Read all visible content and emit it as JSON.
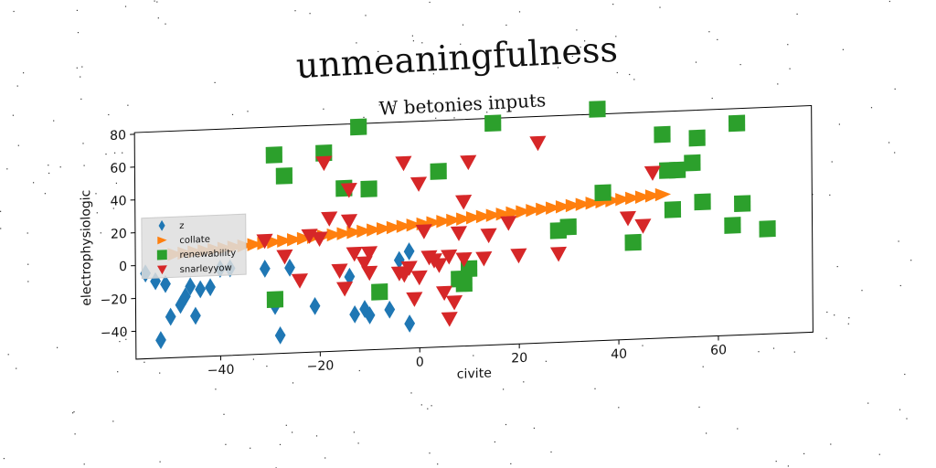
{
  "chart_data": {
    "type": "scatter",
    "suptitle": "unmeaningfulness",
    "title": "W betonies inputs",
    "xlabel": "civite",
    "ylabel": "electrophysiologic",
    "xlim": [
      -57,
      79
    ],
    "ylim": [
      -57,
      81
    ],
    "xticks": [
      -40,
      -20,
      0,
      20,
      40,
      60
    ],
    "xtick_labels": [
      "−40",
      "−20",
      "0",
      "20",
      "40",
      "60"
    ],
    "yticks": [
      -40,
      -20,
      0,
      20,
      40,
      60,
      80
    ],
    "ytick_labels": [
      "−40",
      "−20",
      "0",
      "20",
      "40",
      "60",
      "80"
    ],
    "grid": false,
    "legend_position": "center-left",
    "series": [
      {
        "name": "z",
        "marker": "diamond",
        "color": "#1f77b4",
        "points": [
          [
            -55,
            -5
          ],
          [
            -53,
            -10
          ],
          [
            -52,
            -46
          ],
          [
            -51,
            -12
          ],
          [
            -50,
            -32
          ],
          [
            -48,
            -25
          ],
          [
            -47,
            -20
          ],
          [
            -46,
            -14
          ],
          [
            -45,
            -32
          ],
          [
            -44,
            -16
          ],
          [
            -42,
            -15
          ],
          [
            -40,
            -4
          ],
          [
            -38,
            -4
          ],
          [
            -31,
            -5
          ],
          [
            -29,
            -28
          ],
          [
            -28,
            -46
          ],
          [
            -26,
            -5
          ],
          [
            -21,
            -29
          ],
          [
            -14,
            -12
          ],
          [
            -13,
            -35
          ],
          [
            -11,
            -32
          ],
          [
            -10,
            -36
          ],
          [
            -6,
            -33
          ],
          [
            -4,
            -3
          ],
          [
            -2,
            2
          ],
          [
            -2,
            -42
          ]
        ]
      },
      {
        "name": "collate",
        "marker": "triangle-right",
        "color": "#ff7f0e",
        "points": [
          [
            -49,
            6
          ],
          [
            -47,
            6.5
          ],
          [
            -45,
            7
          ],
          [
            -43,
            7.5
          ],
          [
            -41,
            8
          ],
          [
            -39,
            8.5
          ],
          [
            -37,
            9
          ],
          [
            -35,
            9.5
          ],
          [
            -33,
            10
          ],
          [
            -31,
            10.5
          ],
          [
            -29,
            11
          ],
          [
            -27,
            11.5
          ],
          [
            -25,
            12
          ],
          [
            -23,
            12.5
          ],
          [
            -21,
            13
          ],
          [
            -19,
            13.5
          ],
          [
            -17,
            14
          ],
          [
            -15,
            14.5
          ],
          [
            -13,
            15
          ],
          [
            -11,
            15.5
          ],
          [
            -9,
            16
          ],
          [
            -7,
            16.5
          ],
          [
            -5,
            17
          ],
          [
            -3,
            17.5
          ],
          [
            -1,
            18
          ],
          [
            1,
            18.5
          ],
          [
            3,
            19
          ],
          [
            5,
            19.5
          ],
          [
            7,
            20
          ],
          [
            9,
            20.5
          ],
          [
            11,
            21
          ],
          [
            13,
            21.5
          ],
          [
            15,
            22
          ],
          [
            17,
            22.5
          ],
          [
            19,
            23
          ],
          [
            21,
            23.5
          ],
          [
            23,
            24
          ],
          [
            25,
            24.5
          ],
          [
            27,
            25
          ],
          [
            29,
            25.5
          ],
          [
            31,
            26
          ],
          [
            33,
            26.5
          ],
          [
            35,
            27
          ],
          [
            37,
            27.5
          ],
          [
            39,
            28
          ],
          [
            41,
            28.5
          ],
          [
            43,
            29
          ],
          [
            45,
            29.5
          ],
          [
            47,
            30
          ],
          [
            49,
            30.5
          ]
        ]
      },
      {
        "name": "renewability",
        "marker": "square",
        "color": "#2ca02c",
        "points": [
          [
            -29,
            64
          ],
          [
            -27,
            51
          ],
          [
            -29,
            -24
          ],
          [
            -19,
            64
          ],
          [
            -15,
            42
          ],
          [
            -12,
            79
          ],
          [
            -10,
            41
          ],
          [
            -8,
            -22
          ],
          [
            4,
            50
          ],
          [
            8,
            -16
          ],
          [
            9,
            -19
          ],
          [
            10,
            -10
          ],
          [
            15,
            78
          ],
          [
            28,
            11
          ],
          [
            30,
            13
          ],
          [
            36,
            84
          ],
          [
            37,
            33
          ],
          [
            43,
            2
          ],
          [
            49,
            67
          ],
          [
            50,
            45
          ],
          [
            51,
            21
          ],
          [
            52,
            45
          ],
          [
            55,
            49
          ],
          [
            56,
            64
          ],
          [
            57,
            25
          ],
          [
            63,
            10
          ],
          [
            64,
            72
          ],
          [
            65,
            23
          ],
          [
            70,
            7
          ]
        ]
      },
      {
        "name": "snarleyyow",
        "marker": "triangle-down",
        "color": "#d62728",
        "points": [
          [
            -31,
            12
          ],
          [
            -27,
            2
          ],
          [
            -24,
            -13
          ],
          [
            -22,
            14
          ],
          [
            -20,
            12
          ],
          [
            -19,
            58
          ],
          [
            -18,
            24
          ],
          [
            -16,
            -8
          ],
          [
            -15,
            -19
          ],
          [
            -14,
            22
          ],
          [
            -14,
            41
          ],
          [
            -13,
            2
          ],
          [
            -11,
            -4
          ],
          [
            -10,
            -10
          ],
          [
            -10,
            2
          ],
          [
            -4,
            -11
          ],
          [
            -3,
            56
          ],
          [
            -3,
            -12
          ],
          [
            -2,
            -8
          ],
          [
            -1,
            -27
          ],
          [
            0,
            -14
          ],
          [
            0,
            43
          ],
          [
            1,
            14
          ],
          [
            2,
            -2
          ],
          [
            3,
            -4
          ],
          [
            4,
            -7
          ],
          [
            5,
            -24
          ],
          [
            6,
            -40
          ],
          [
            6,
            -2
          ],
          [
            7,
            -30
          ],
          [
            8,
            12
          ],
          [
            9,
            31
          ],
          [
            9,
            -4
          ],
          [
            10,
            55
          ],
          [
            13,
            -4
          ],
          [
            14,
            10
          ],
          [
            18,
            17
          ],
          [
            20,
            -3
          ],
          [
            24,
            65
          ],
          [
            28,
            -3
          ],
          [
            42,
            17
          ],
          [
            45,
            12
          ],
          [
            47,
            44
          ]
        ]
      }
    ]
  }
}
